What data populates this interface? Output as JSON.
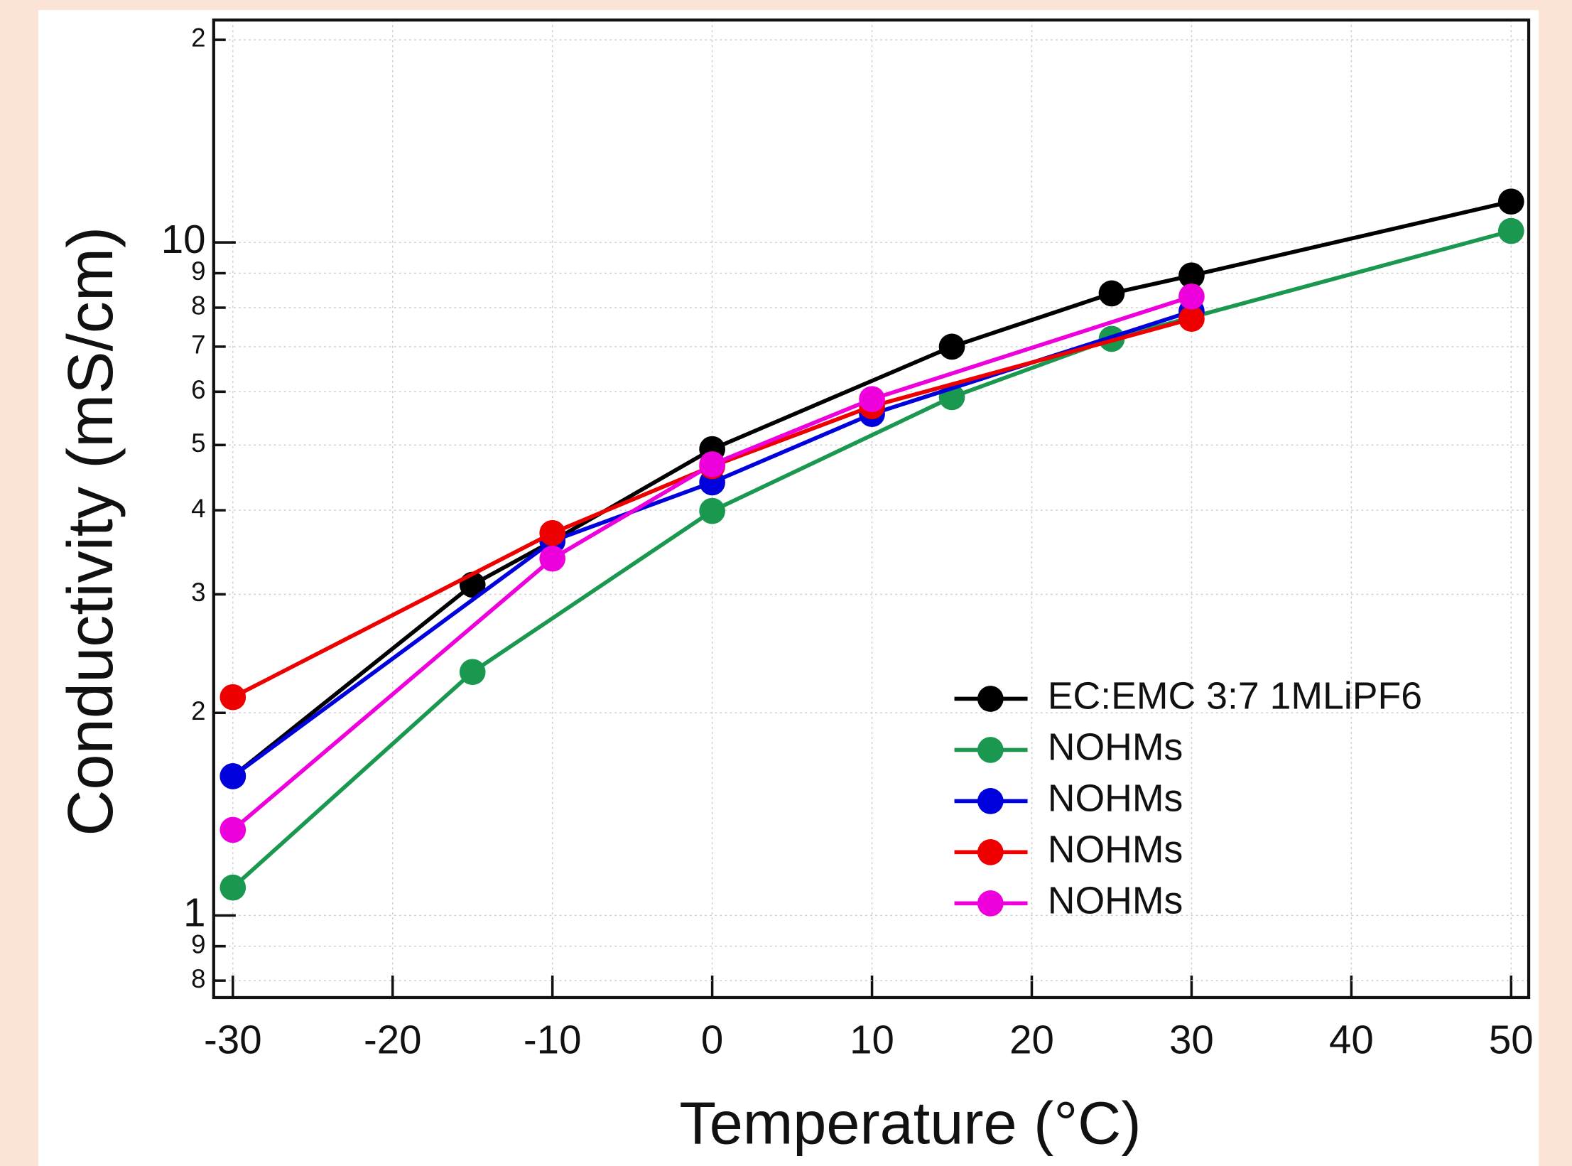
{
  "chart_data": {
    "type": "line",
    "y_label": "Conductivity (mS/cm)",
    "x_label": "Temperature (°C)",
    "ylog": true,
    "grid": true,
    "legend": "lower right",
    "xlim": [
      -31.2,
      51.1
    ],
    "ylim": [
      0.755,
      21.4
    ],
    "xticks": [
      -30,
      -20,
      -10,
      0,
      10,
      20,
      30,
      40,
      50
    ],
    "yticks": [
      {
        "value": 0.8,
        "label": "8"
      },
      {
        "value": 0.9,
        "label": "9"
      },
      1,
      {
        "value": 2,
        "label": "2"
      },
      {
        "value": 3,
        "label": "3"
      },
      {
        "value": 4,
        "label": "4"
      },
      {
        "value": 5,
        "label": "5"
      },
      {
        "value": 6,
        "label": "6"
      },
      {
        "value": 7,
        "label": "7"
      },
      {
        "value": 8,
        "label": "8"
      },
      {
        "value": 9,
        "label": "9"
      },
      10,
      {
        "value": 20,
        "label": "2"
      }
    ],
    "series": [
      {
        "name": "EC:EMC 3:7 1MLiPF6",
        "color": "#000000",
        "x": [
          -30,
          -15,
          -10,
          0,
          15,
          25,
          30,
          50
        ],
        "values": [
          1.61,
          3.1,
          3.6,
          4.93,
          7.0,
          8.4,
          8.93,
          11.5
        ]
      },
      {
        "name": "NOHMs",
        "color": "#1a9850",
        "x": [
          -30,
          -15,
          0,
          15,
          25,
          50
        ],
        "values": [
          1.1,
          2.3,
          3.99,
          5.89,
          7.19,
          10.4
        ]
      },
      {
        "name": "NOHMs",
        "color": "#0000dd",
        "x": [
          -30,
          -10,
          0,
          10,
          30
        ],
        "values": [
          1.61,
          3.6,
          4.4,
          5.56,
          7.9
        ]
      },
      {
        "name": "NOHMs",
        "color": "#ee0000",
        "x": [
          -30,
          -10,
          0,
          10,
          30
        ],
        "values": [
          2.11,
          3.7,
          4.65,
          5.71,
          7.7
        ]
      },
      {
        "name": "NOHMs",
        "color": "#ee00dd",
        "x": [
          -30,
          -10,
          0,
          10,
          30
        ],
        "values": [
          1.34,
          3.39,
          4.68,
          5.85,
          8.31
        ]
      }
    ]
  }
}
